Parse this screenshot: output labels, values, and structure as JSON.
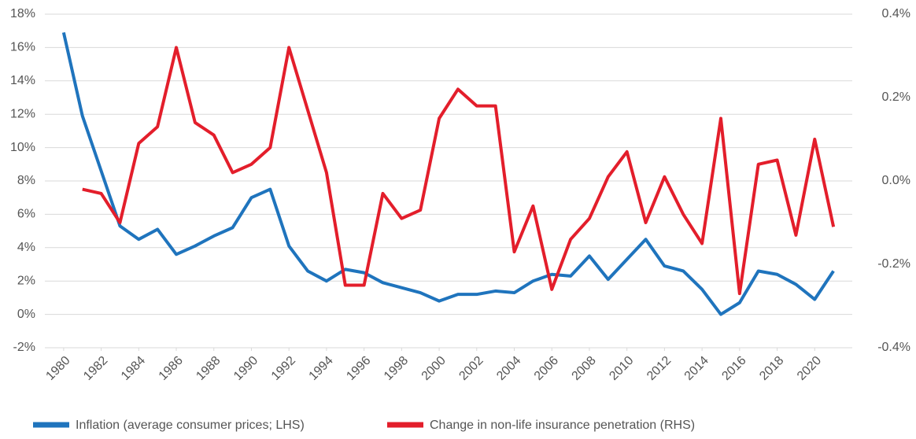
{
  "chart_data": {
    "type": "line",
    "x": [
      1980,
      1981,
      1982,
      1983,
      1984,
      1985,
      1986,
      1987,
      1988,
      1989,
      1990,
      1991,
      1992,
      1993,
      1994,
      1995,
      1996,
      1997,
      1998,
      1999,
      2000,
      2001,
      2002,
      2003,
      2004,
      2005,
      2006,
      2007,
      2008,
      2009,
      2010,
      2011,
      2012,
      2013,
      2014,
      2015,
      2016,
      2017,
      2018,
      2019,
      2020,
      2021
    ],
    "xlim": [
      1979,
      2022
    ],
    "xticks": [
      1980,
      1982,
      1984,
      1986,
      1988,
      1990,
      1992,
      1994,
      1996,
      1998,
      2000,
      2002,
      2004,
      2006,
      2008,
      2010,
      2012,
      2014,
      2016,
      2018,
      2020
    ],
    "ylim": [
      -2,
      18
    ],
    "yticks": [
      {
        "value": -2,
        "label": "-2%"
      },
      {
        "value": 0,
        "label": "0%"
      },
      {
        "value": 2,
        "label": "2%"
      },
      {
        "value": 4,
        "label": "4%"
      },
      {
        "value": 6,
        "label": "6%"
      },
      {
        "value": 8,
        "label": "8%"
      },
      {
        "value": 10,
        "label": "10%"
      },
      {
        "value": 12,
        "label": "12%"
      },
      {
        "value": 14,
        "label": "14%"
      },
      {
        "value": 16,
        "label": "16%"
      },
      {
        "value": 18,
        "label": "18%"
      }
    ],
    "y2lim": [
      -0.4,
      0.4
    ],
    "y2ticks": [
      {
        "value": -0.4,
        "label": "-0.4%"
      },
      {
        "value": -0.2,
        "label": "-0.2%"
      },
      {
        "value": 0,
        "label": "0.0%"
      },
      {
        "value": 0.2,
        "label": "0.2%"
      },
      {
        "value": 0.4,
        "label": "0.4%"
      }
    ],
    "grid": true,
    "legend": "bottom",
    "series": [
      {
        "name": "Inflation (average consumer prices; LHS)",
        "color": "#1f74bd",
        "values": [
          16.9,
          11.9,
          8.6,
          5.3,
          4.5,
          5.1,
          3.6,
          4.1,
          4.7,
          5.2,
          7.0,
          7.5,
          4.1,
          2.6,
          2.0,
          2.7,
          2.5,
          1.9,
          1.6,
          1.3,
          0.8,
          1.2,
          1.2,
          1.4,
          1.3,
          2.0,
          2.4,
          2.3,
          3.5,
          2.1,
          3.3,
          4.5,
          2.9,
          2.6,
          1.5,
          0.0,
          0.7,
          2.6,
          2.4,
          1.8,
          0.9,
          2.6
        ]
      },
      {
        "name": "Change in non-life insurance penetration (RHS)",
        "color": "#e31e2b",
        "axis": "y2",
        "values": [
          null,
          -0.02,
          -0.03,
          -0.1,
          0.09,
          0.13,
          0.32,
          0.14,
          0.11,
          0.02,
          0.04,
          0.08,
          0.32,
          0.17,
          0.02,
          -0.25,
          -0.25,
          -0.03,
          -0.09,
          -0.07,
          0.15,
          0.22,
          0.18,
          0.18,
          -0.17,
          -0.06,
          -0.26,
          -0.14,
          -0.09,
          0.01,
          0.07,
          -0.1,
          0.01,
          -0.08,
          -0.15,
          0.15,
          -0.27,
          0.04,
          0.05,
          -0.13,
          0.1,
          -0.11
        ]
      }
    ]
  }
}
